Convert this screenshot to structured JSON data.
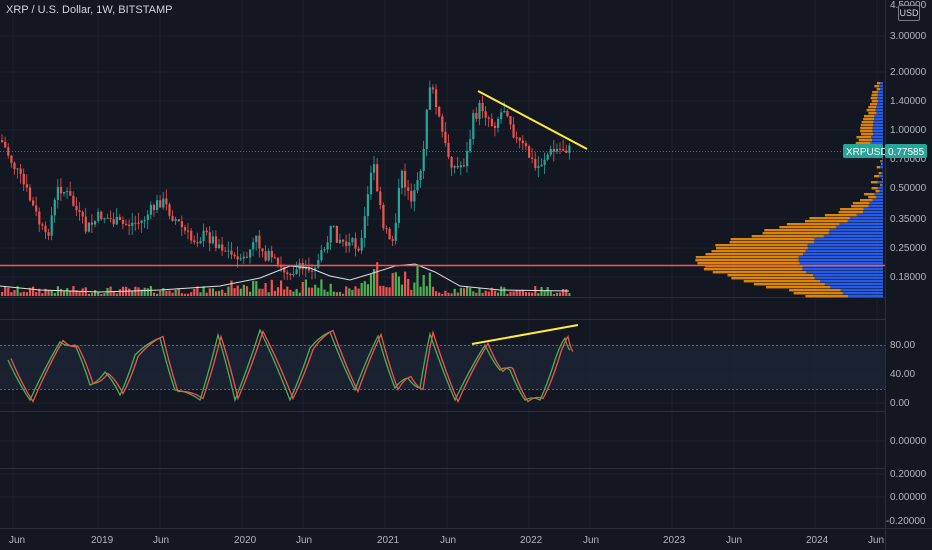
{
  "header": {
    "title": "XRP / U.S. Dollar, 1W, BITSTAMP",
    "currency_badge": "USD",
    "top_price": "4.50000"
  },
  "price_axis": {
    "ticks": [
      "3.00000",
      "2.00000",
      "1.40000",
      "1.00000",
      "0.70000",
      "0.50000",
      "0.35000",
      "0.25000",
      "0.18000"
    ],
    "symbol_tag": "XRPUSD",
    "last_price": "0.77585"
  },
  "oscillator_axis": {
    "ticks": [
      "80.00",
      "40.00",
      "0.00"
    ]
  },
  "pane3_axis": {
    "ticks": [
      "0.00000"
    ]
  },
  "pane4_axis": {
    "ticks": [
      "0.20000",
      "0.00000",
      "-0.20000"
    ]
  },
  "time_axis": {
    "labels": [
      "Jun",
      "2019",
      "Jun",
      "2020",
      "Jun",
      "2021",
      "Jun",
      "2022",
      "Jun",
      "2023",
      "Jun",
      "2024",
      "Jun"
    ]
  },
  "colors": {
    "background": "#131722",
    "up_candle": "#26a69a",
    "down_candle": "#ef5350",
    "volume_up": "#4caf50",
    "volume_down": "#ef5350",
    "trendline": "#ffeb3b",
    "support_line": "#ff5252",
    "osc_k": "#4caf50",
    "osc_d": "#ef5350",
    "profile_blue": "#2962ff",
    "profile_orange": "#ff9800",
    "price_tag": "#26a69a"
  }
}
